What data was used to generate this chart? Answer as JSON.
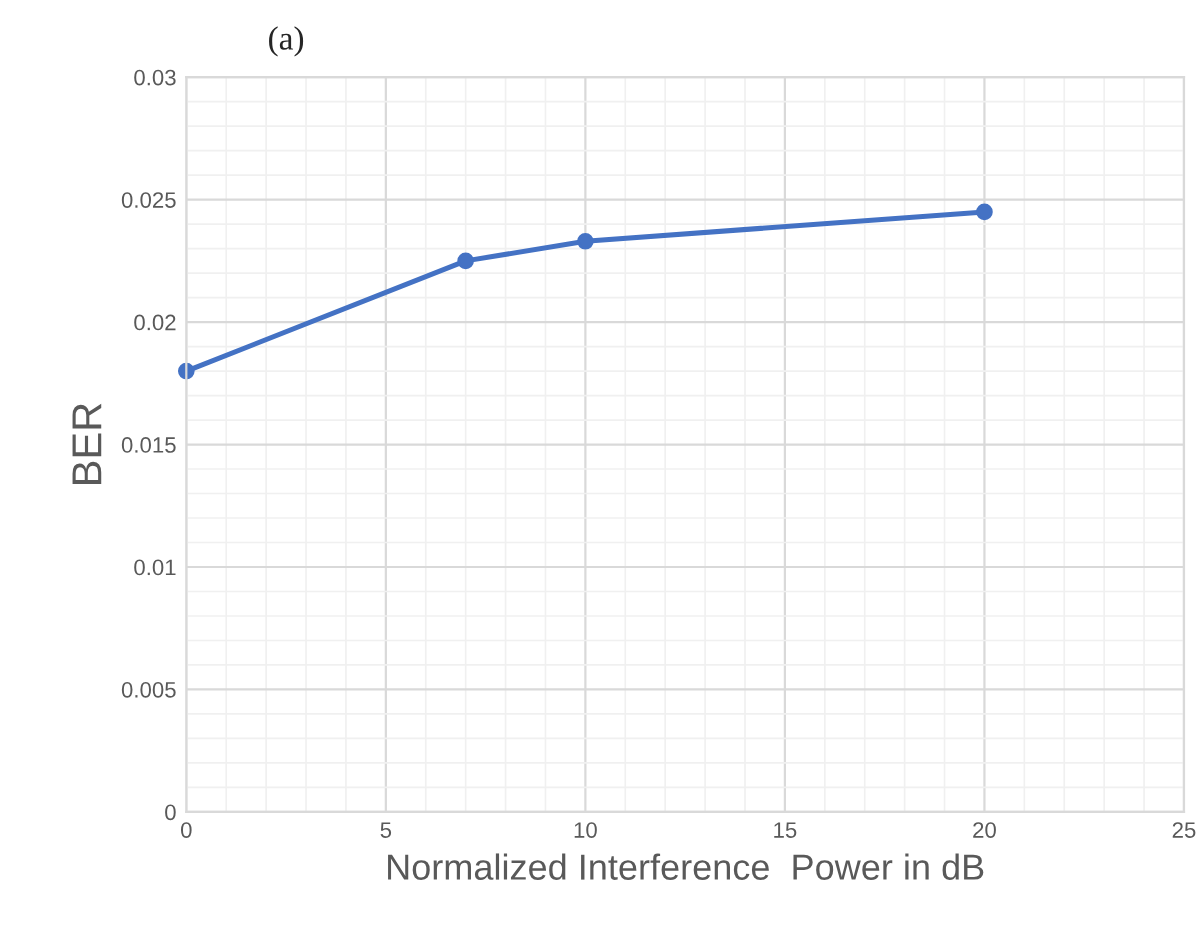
{
  "chart_data": {
    "type": "line",
    "title": "(a)",
    "xlabel": "Normalized Interference  Power in dB",
    "ylabel": "BER",
    "x": [
      0,
      7,
      10,
      20
    ],
    "series": [
      {
        "color": "#4472c4",
        "values": [
          0.018,
          0.0225,
          0.0233,
          0.0245
        ]
      }
    ],
    "xlim": [
      0,
      25
    ],
    "xticks": [
      0,
      5,
      10,
      15,
      20,
      25
    ],
    "ylim": [
      0,
      0.03
    ],
    "yticks": [
      0,
      0.005,
      0.01,
      0.015,
      0.02,
      0.025,
      0.03
    ],
    "grid": true,
    "marker": "circle",
    "line_style": "solid",
    "legend": false
  }
}
